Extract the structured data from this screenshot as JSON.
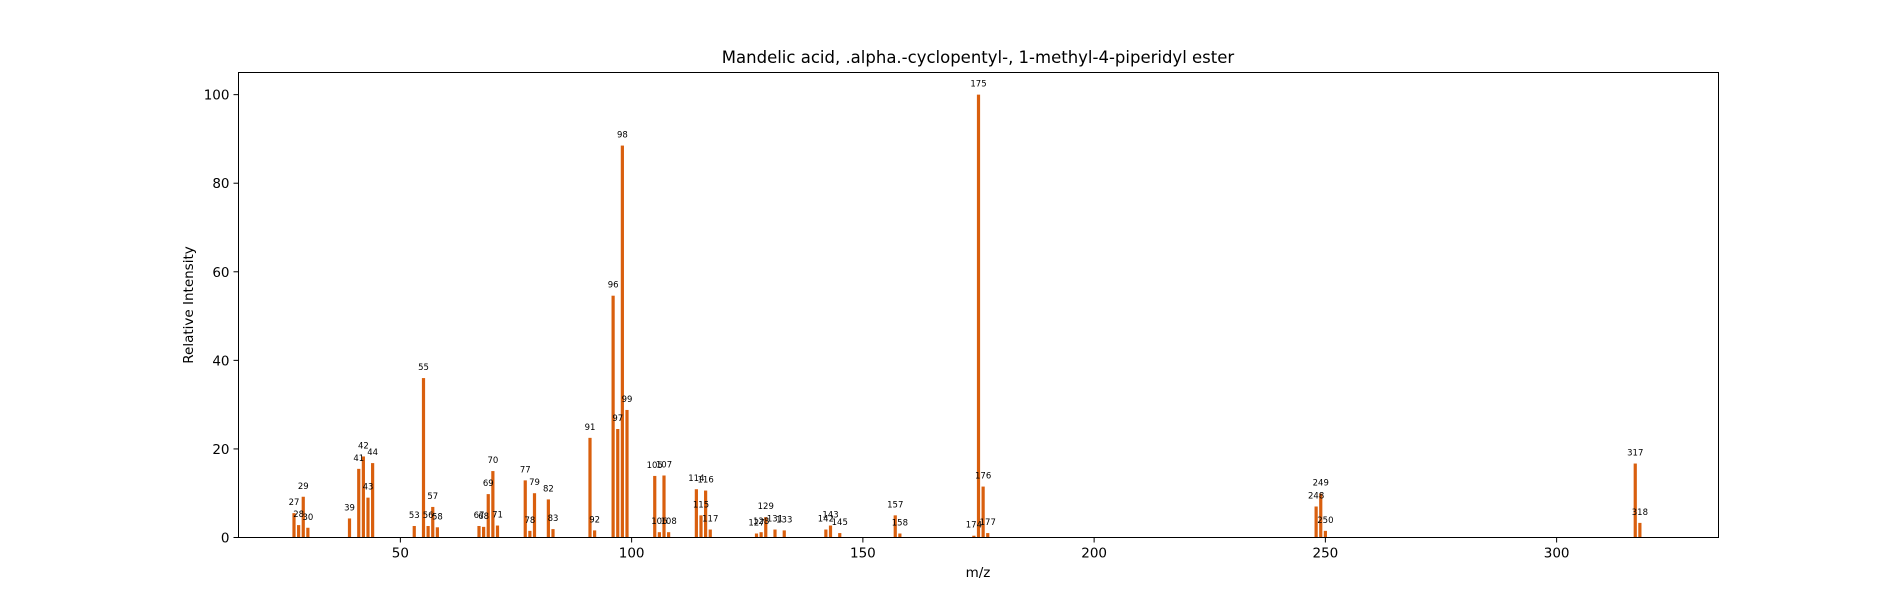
{
  "chart_data": {
    "type": "bar",
    "title": "Mandelic acid, .alpha.-cyclopentyl-, 1-methyl-4-piperidyl ester",
    "xlabel": "m/z",
    "ylabel": "Relative Intensity",
    "xlim": [
      15,
      335
    ],
    "ylim": [
      0,
      105
    ],
    "xticks": [
      50,
      100,
      150,
      200,
      250,
      300
    ],
    "yticks": [
      0,
      20,
      40,
      60,
      80,
      100
    ],
    "grid": false,
    "color": "#d95f0e",
    "peaks": [
      {
        "mz": 27,
        "intensity": 5.5
      },
      {
        "mz": 28,
        "intensity": 2.8
      },
      {
        "mz": 29,
        "intensity": 9.2
      },
      {
        "mz": 30,
        "intensity": 2.2
      },
      {
        "mz": 39,
        "intensity": 4.3
      },
      {
        "mz": 41,
        "intensity": 15.5
      },
      {
        "mz": 42,
        "intensity": 18.3
      },
      {
        "mz": 43,
        "intensity": 9.0
      },
      {
        "mz": 44,
        "intensity": 16.8
      },
      {
        "mz": 53,
        "intensity": 2.6
      },
      {
        "mz": 55,
        "intensity": 36.0
      },
      {
        "mz": 56,
        "intensity": 2.6
      },
      {
        "mz": 57,
        "intensity": 6.9
      },
      {
        "mz": 58,
        "intensity": 2.3
      },
      {
        "mz": 67,
        "intensity": 2.6
      },
      {
        "mz": 68,
        "intensity": 2.4
      },
      {
        "mz": 69,
        "intensity": 9.8
      },
      {
        "mz": 70,
        "intensity": 15.0
      },
      {
        "mz": 71,
        "intensity": 2.7
      },
      {
        "mz": 77,
        "intensity": 12.9
      },
      {
        "mz": 78,
        "intensity": 1.5
      },
      {
        "mz": 79,
        "intensity": 10.0
      },
      {
        "mz": 82,
        "intensity": 8.6
      },
      {
        "mz": 83,
        "intensity": 1.9
      },
      {
        "mz": 91,
        "intensity": 22.5
      },
      {
        "mz": 92,
        "intensity": 1.6
      },
      {
        "mz": 96,
        "intensity": 54.6
      },
      {
        "mz": 97,
        "intensity": 24.5
      },
      {
        "mz": 98,
        "intensity": 88.5
      },
      {
        "mz": 99,
        "intensity": 28.8
      },
      {
        "mz": 105,
        "intensity": 13.9
      },
      {
        "mz": 106,
        "intensity": 1.2
      },
      {
        "mz": 107,
        "intensity": 14.0
      },
      {
        "mz": 108,
        "intensity": 1.2
      },
      {
        "mz": 115,
        "intensity": 5.0
      },
      {
        "mz": 114,
        "intensity": 10.9
      },
      {
        "mz": 116,
        "intensity": 10.6
      },
      {
        "mz": 117,
        "intensity": 1.8
      },
      {
        "mz": 127,
        "intensity": 0.9
      },
      {
        "mz": 128,
        "intensity": 1.2
      },
      {
        "mz": 129,
        "intensity": 4.6
      },
      {
        "mz": 131,
        "intensity": 1.8
      },
      {
        "mz": 133,
        "intensity": 1.6
      },
      {
        "mz": 142,
        "intensity": 1.8
      },
      {
        "mz": 143,
        "intensity": 2.7
      },
      {
        "mz": 145,
        "intensity": 1.0
      },
      {
        "mz": 157,
        "intensity": 5.0
      },
      {
        "mz": 158,
        "intensity": 0.9
      },
      {
        "mz": 174,
        "intensity": 0.4
      },
      {
        "mz": 175,
        "intensity": 100
      },
      {
        "mz": 176,
        "intensity": 11.5
      },
      {
        "mz": 177,
        "intensity": 1.0
      },
      {
        "mz": 248,
        "intensity": 7.0
      },
      {
        "mz": 249,
        "intensity": 9.9
      },
      {
        "mz": 250,
        "intensity": 1.5
      },
      {
        "mz": 317,
        "intensity": 16.7
      },
      {
        "mz": 318,
        "intensity": 3.3
      }
    ],
    "peak_labels": [
      {
        "mz": 27,
        "text": "27"
      },
      {
        "mz": 28,
        "text": "28"
      },
      {
        "mz": 29,
        "text": "29"
      },
      {
        "mz": 30,
        "text": "30"
      },
      {
        "mz": 39,
        "text": "39"
      },
      {
        "mz": 41,
        "text": "41"
      },
      {
        "mz": 42,
        "text": "42"
      },
      {
        "mz": 43,
        "text": "43"
      },
      {
        "mz": 44,
        "text": "44"
      },
      {
        "mz": 53,
        "text": "53"
      },
      {
        "mz": 55,
        "text": "55"
      },
      {
        "mz": 56,
        "text": "56"
      },
      {
        "mz": 57,
        "text": "57"
      },
      {
        "mz": 58,
        "text": "58"
      },
      {
        "mz": 67,
        "text": "67"
      },
      {
        "mz": 68,
        "text": "68"
      },
      {
        "mz": 69,
        "text": "69"
      },
      {
        "mz": 70,
        "text": "70"
      },
      {
        "mz": 71,
        "text": "71"
      },
      {
        "mz": 77,
        "text": "77"
      },
      {
        "mz": 78,
        "text": "78"
      },
      {
        "mz": 79,
        "text": "79"
      },
      {
        "mz": 82,
        "text": "82"
      },
      {
        "mz": 83,
        "text": "83"
      },
      {
        "mz": 91,
        "text": "91"
      },
      {
        "mz": 92,
        "text": "92"
      },
      {
        "mz": 96,
        "text": "96"
      },
      {
        "mz": 97,
        "text": "97"
      },
      {
        "mz": 98,
        "text": "98"
      },
      {
        "mz": 99,
        "text": "99"
      },
      {
        "mz": 105,
        "text": "105"
      },
      {
        "mz": 106,
        "text": "106"
      },
      {
        "mz": 107,
        "text": "107"
      },
      {
        "mz": 108,
        "text": "108"
      },
      {
        "mz": 114,
        "text": "114"
      },
      {
        "mz": 115,
        "text": "115"
      },
      {
        "mz": 116,
        "text": "116"
      },
      {
        "mz": 117,
        "text": "117"
      },
      {
        "mz": 127,
        "text": "127"
      },
      {
        "mz": 128,
        "text": "128"
      },
      {
        "mz": 129,
        "text": "129"
      },
      {
        "mz": 131,
        "text": "131"
      },
      {
        "mz": 133,
        "text": "133"
      },
      {
        "mz": 142,
        "text": "142"
      },
      {
        "mz": 143,
        "text": "143"
      },
      {
        "mz": 145,
        "text": "145"
      },
      {
        "mz": 157,
        "text": "157"
      },
      {
        "mz": 158,
        "text": "158"
      },
      {
        "mz": 174,
        "text": "174"
      },
      {
        "mz": 175,
        "text": "175"
      },
      {
        "mz": 176,
        "text": "176"
      },
      {
        "mz": 177,
        "text": "177"
      },
      {
        "mz": 248,
        "text": "248"
      },
      {
        "mz": 249,
        "text": "249"
      },
      {
        "mz": 250,
        "text": "250"
      },
      {
        "mz": 317,
        "text": "317"
      },
      {
        "mz": 318,
        "text": "318"
      }
    ]
  }
}
